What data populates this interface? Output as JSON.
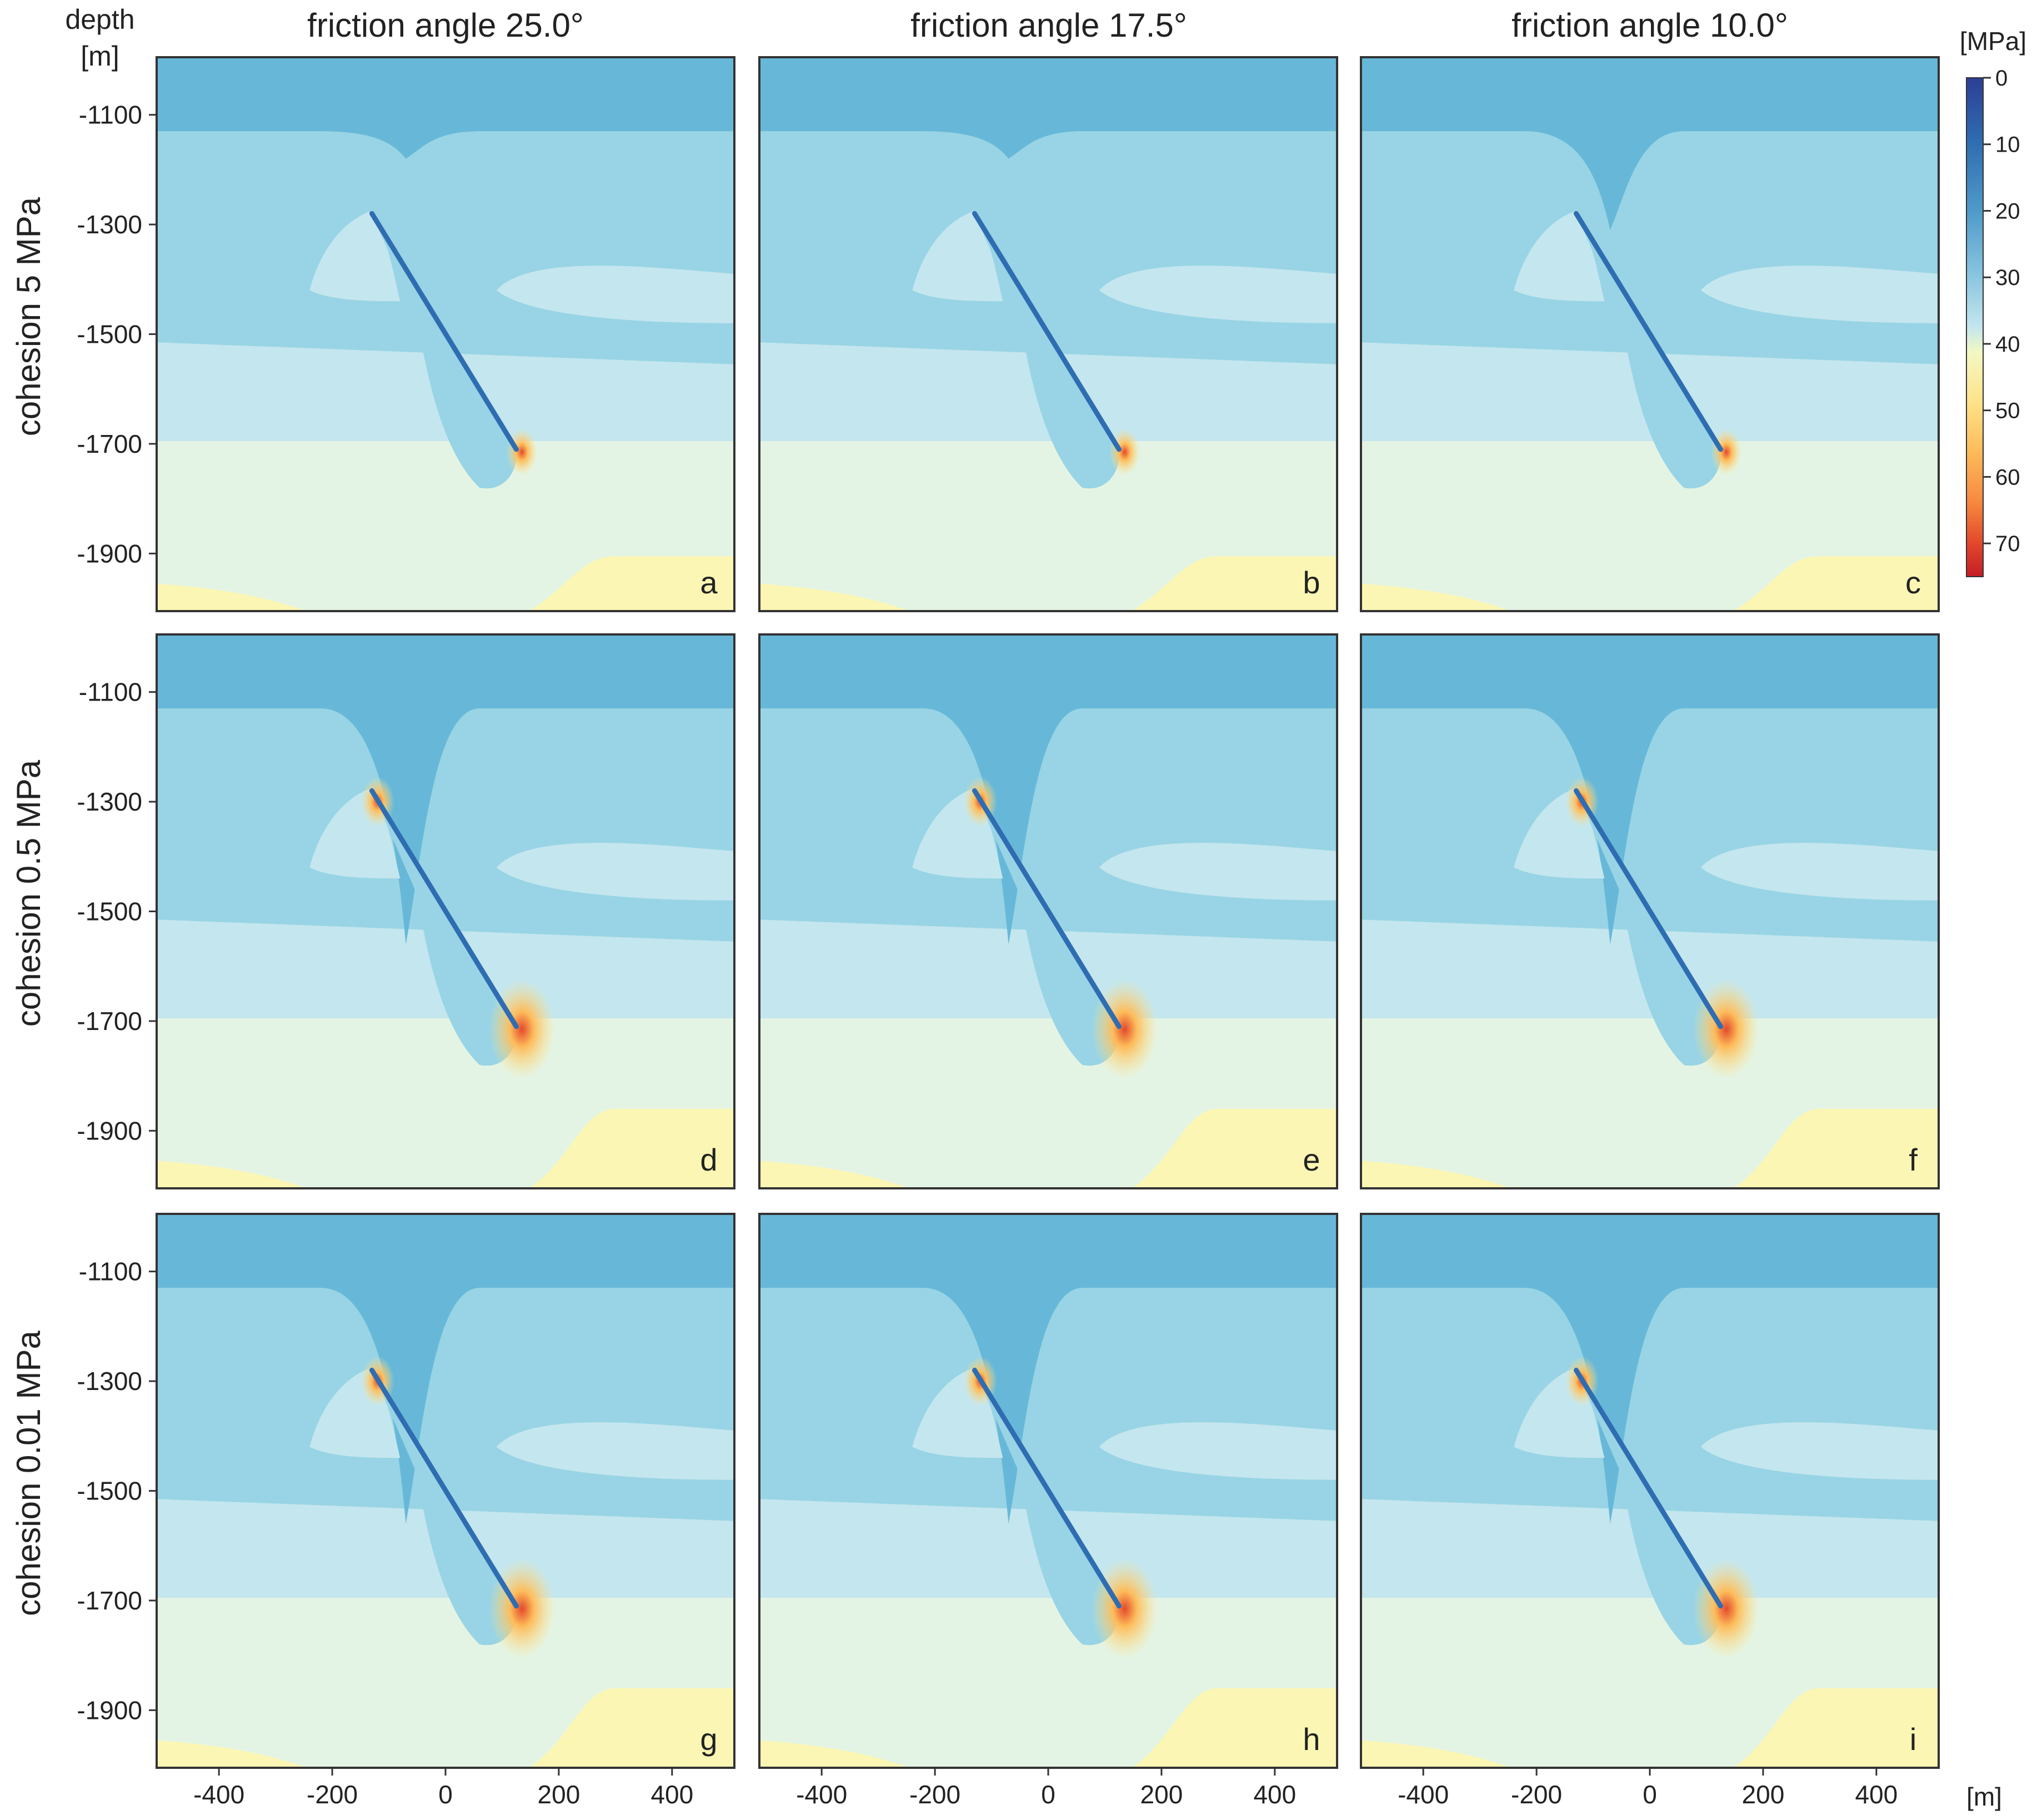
{
  "chart_data": {
    "type": "heatmap",
    "column_titles": [
      "friction angle 25.0°",
      "friction angle 17.5°",
      "friction angle 10.0°"
    ],
    "row_titles": [
      "cohesion 5 MPa",
      "cohesion 0.5 MPa",
      "cohesion 0.01 MPa"
    ],
    "panel_letters": [
      "a",
      "b",
      "c",
      "d",
      "e",
      "f",
      "g",
      "h",
      "i"
    ],
    "y_axis_title": [
      "depth",
      "[m]"
    ],
    "x_unit": "[m]",
    "colorbar_title": "[MPa]",
    "colorbar_ticks": [
      0,
      10,
      20,
      30,
      40,
      50,
      60,
      70
    ],
    "colorbar_range": [
      0,
      75
    ],
    "colorbar_colors": [
      "#2c3f95",
      "#2f6db2",
      "#4f9bca",
      "#8cc6e0",
      "#c4e6ee",
      "#f3f8c4",
      "#fde38a",
      "#fdbb5a",
      "#f7893f",
      "#e34a2c",
      "#c41d26"
    ],
    "x_ticks": [
      -400,
      -200,
      0,
      200,
      400
    ],
    "x_range": [
      -510,
      510
    ],
    "y_ticks": [
      -1100,
      -1300,
      -1500,
      -1700,
      -1900
    ],
    "y_range": [
      -2005,
      -995
    ],
    "fault": {
      "top": [
        -130,
        -1280
      ],
      "bottom": [
        125,
        -1710
      ]
    },
    "field_colors": {
      "band_10_20": "#67b8d8",
      "band_20_25": "#98d4e5",
      "band_25_30": "#c4e6ee",
      "band_30_35": "#e4f4e4",
      "band_35_40": "#fbf6b4",
      "fault_dark": "#2f6db2",
      "hot_40_50": "#fde38a",
      "hot_max": "#e34a2c"
    }
  }
}
